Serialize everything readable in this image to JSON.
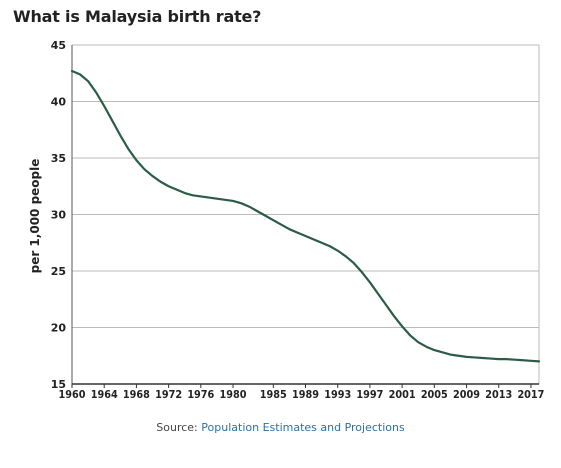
{
  "chart_data": {
    "type": "line",
    "title": "What is Malaysia birth rate?",
    "xlabel": "",
    "ylabel": "per 1,000 people",
    "ylim": [
      15,
      45
    ],
    "yticks": [
      15,
      20,
      25,
      30,
      35,
      40,
      45
    ],
    "xlim": [
      1960,
      2018
    ],
    "xticks": [
      1960,
      1964,
      1968,
      1972,
      1976,
      1980,
      1985,
      1989,
      1993,
      1997,
      2001,
      2005,
      2009,
      2013,
      2017
    ],
    "grid": true,
    "series": [
      {
        "color": "#2b5c46",
        "x": [
          1960,
          1961,
          1962,
          1963,
          1964,
          1965,
          1966,
          1967,
          1968,
          1969,
          1970,
          1971,
          1972,
          1973,
          1974,
          1975,
          1976,
          1977,
          1978,
          1979,
          1980,
          1981,
          1982,
          1983,
          1984,
          1985,
          1986,
          1987,
          1988,
          1989,
          1990,
          1991,
          1992,
          1993,
          1994,
          1995,
          1996,
          1997,
          1998,
          1999,
          2000,
          2001,
          2002,
          2003,
          2004,
          2005,
          2006,
          2007,
          2008,
          2009,
          2010,
          2011,
          2012,
          2013,
          2014,
          2015,
          2016,
          2017,
          2018
        ],
        "y": [
          42.7,
          42.4,
          41.8,
          40.8,
          39.6,
          38.3,
          37.0,
          35.8,
          34.8,
          34.0,
          33.4,
          32.9,
          32.5,
          32.2,
          31.9,
          31.7,
          31.6,
          31.5,
          31.4,
          31.3,
          31.2,
          31.0,
          30.7,
          30.3,
          29.9,
          29.5,
          29.1,
          28.7,
          28.4,
          28.1,
          27.8,
          27.5,
          27.2,
          26.8,
          26.3,
          25.7,
          24.9,
          24.0,
          23.0,
          22.0,
          21.0,
          20.1,
          19.3,
          18.7,
          18.3,
          18.0,
          17.8,
          17.6,
          17.5,
          17.4,
          17.35,
          17.3,
          17.25,
          17.2,
          17.2,
          17.15,
          17.1,
          17.05,
          17.0
        ]
      }
    ]
  },
  "source": {
    "label": "Source:",
    "link_text": "Population Estimates and Projections"
  }
}
